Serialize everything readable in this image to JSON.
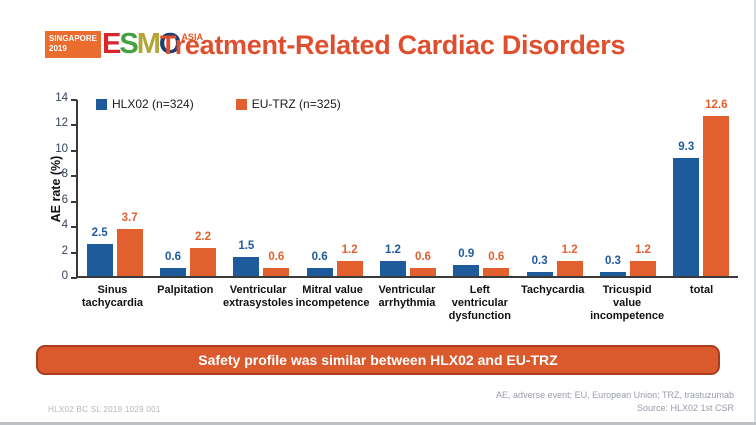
{
  "header": {
    "badge_line1": "SINGAPORE",
    "badge_line2": "2019",
    "logo_letters": [
      {
        "ch": "E",
        "color": "#d7262c"
      },
      {
        "ch": "S",
        "color": "#45a041"
      },
      {
        "ch": "M",
        "color": "#b3a636"
      },
      {
        "ch": "O",
        "color": "#1c3e70"
      }
    ],
    "logo_sup": "ASIA",
    "title": "Treatment-Related Cardiac Disorders"
  },
  "chart_data": {
    "type": "bar",
    "title": "",
    "xlabel": "",
    "ylabel": "AE rate (%)",
    "ylim": [
      0,
      14
    ],
    "ytick_step": 2,
    "grid": false,
    "legend_position": "top-left-inside",
    "categories": [
      "Sinus tachycardia",
      "Palpitation",
      "Ventricular extrasystoles",
      "Mitral value incompetence",
      "Ventricular arrhythmia",
      "Left ventricular dysfunction",
      "Tachycardia",
      "Tricuspid value incompetence",
      "total"
    ],
    "series": [
      {
        "name": "HLX02 (n=324)",
        "color": "#1e5b9c",
        "values": [
          2.5,
          0.6,
          1.5,
          0.6,
          1.2,
          0.9,
          0.3,
          0.3,
          9.3
        ]
      },
      {
        "name": "EU-TRZ (n=325)",
        "color": "#e2602e",
        "values": [
          3.7,
          2.2,
          0.6,
          1.2,
          0.6,
          0.6,
          1.2,
          1.2,
          12.6
        ]
      }
    ]
  },
  "banner": {
    "text": "Safety profile was similar between HLX02 and EU-TRZ"
  },
  "footer": {
    "left": "HLX02 BC SL 2019 1029 001",
    "right_line1": "AE, adverse event; EU, European Union; TRZ, trastuzumab",
    "right_line2": "Source: HLX02 1st CSR"
  },
  "colors": {
    "title": "#e04f2d",
    "banner_fill": "#db5a2d",
    "banner_border": "#a83c1e",
    "axis": "#3a3a3a",
    "tick_text": "#33415c"
  }
}
